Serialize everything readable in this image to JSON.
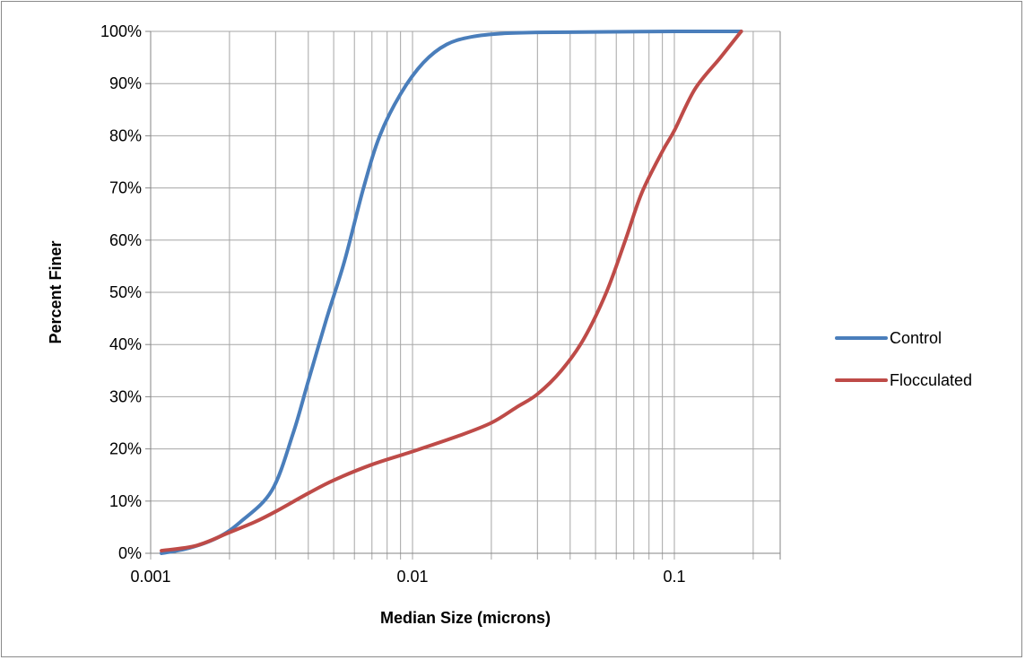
{
  "chart_data": {
    "type": "line",
    "xlabel": "Median Size (microns)",
    "ylabel": "Percent Finer",
    "x_scale": "log",
    "xlim": [
      0.001,
      0.25
    ],
    "ylim": [
      0,
      100
    ],
    "x_tick_labels": [
      {
        "value": 0.001,
        "label": "0.001"
      },
      {
        "value": 0.01,
        "label": "0.01"
      },
      {
        "value": 0.1,
        "label": "0.1"
      }
    ],
    "y_tick_labels": [
      "0%",
      "10%",
      "20%",
      "30%",
      "40%",
      "50%",
      "60%",
      "70%",
      "80%",
      "90%",
      "100%"
    ],
    "y_ticks": [
      0,
      10,
      20,
      30,
      40,
      50,
      60,
      70,
      80,
      90,
      100
    ],
    "grid": {
      "vertical": true,
      "horizontal": true
    },
    "legend": "right",
    "series": [
      {
        "name": "Control",
        "color": "#4a7ebb",
        "x": [
          0.0011,
          0.0014,
          0.0018,
          0.0022,
          0.0029,
          0.0035,
          0.004,
          0.0047,
          0.0055,
          0.0065,
          0.0075,
          0.009,
          0.011,
          0.0135,
          0.017,
          0.022,
          0.03,
          0.05,
          0.1,
          0.18
        ],
        "y": [
          0,
          1,
          3,
          6,
          12,
          23,
          33,
          45,
          56,
          70,
          80,
          88,
          94,
          97.5,
          99,
          99.6,
          99.8,
          99.9,
          100,
          100
        ]
      },
      {
        "name": "Flocculated",
        "color": "#be4b48",
        "x": [
          0.0011,
          0.0015,
          0.002,
          0.0025,
          0.003,
          0.004,
          0.005,
          0.007,
          0.01,
          0.015,
          0.02,
          0.025,
          0.03,
          0.037,
          0.045,
          0.055,
          0.065,
          0.075,
          0.09,
          0.1,
          0.12,
          0.15,
          0.18
        ],
        "y": [
          0.5,
          1.5,
          4,
          6,
          8,
          11.5,
          14,
          17,
          19.5,
          22.5,
          25,
          28,
          30.5,
          35,
          41,
          50,
          60,
          69,
          77,
          81,
          89,
          95,
          100
        ]
      }
    ]
  }
}
